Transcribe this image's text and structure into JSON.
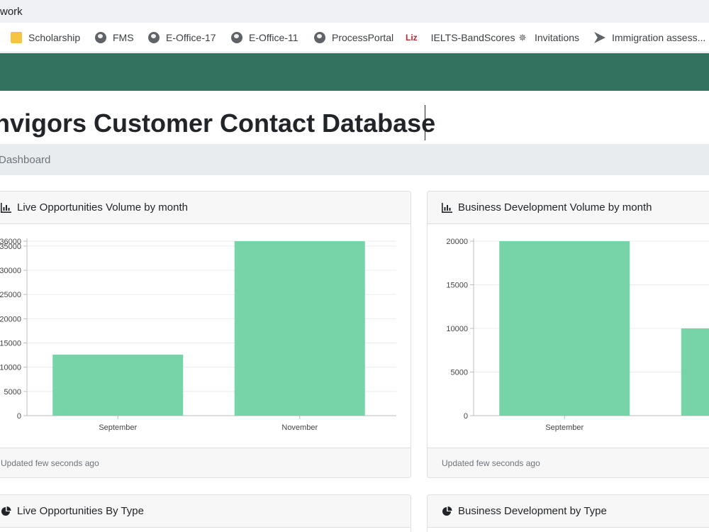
{
  "browser": {
    "tab_title": "work",
    "bookmarks": [
      {
        "label": "Scholarship",
        "icon": "folder-icon"
      },
      {
        "label": "FMS",
        "icon": "globe-icon"
      },
      {
        "label": "E-Office-17",
        "icon": "globe-icon"
      },
      {
        "label": "E-Office-11",
        "icon": "globe-icon"
      },
      {
        "label": "ProcessPortal",
        "icon": "globe-icon"
      },
      {
        "label": "IELTS-BandScores",
        "icon": "liz-logo-icon",
        "logo_text": "Liz"
      },
      {
        "label": "Invitations",
        "icon": "crest-icon"
      },
      {
        "label": "Immigration assess...",
        "icon": "flag-icon"
      }
    ]
  },
  "page": {
    "title": "nvigors Customer Contact Database",
    "breadcrumb": "Dashboard"
  },
  "colors": {
    "navbar": "#347260",
    "bar": "#77d4a8"
  },
  "cards": {
    "live_volume": {
      "title": "Live Opportunities Volume by month",
      "icon": "bar-chart-icon",
      "footer": "Updated few seconds ago"
    },
    "bd_volume": {
      "title": "Business Development Volume by month",
      "icon": "bar-chart-icon",
      "footer": "Updated few seconds ago"
    },
    "live_type": {
      "title": "Live Opportunities By Type",
      "icon": "pie-chart-icon"
    },
    "bd_type": {
      "title": "Business Development by Type",
      "icon": "pie-chart-icon"
    }
  },
  "chart_data": [
    {
      "type": "bar",
      "categories": [
        "September",
        "November"
      ],
      "values": [
        12600,
        36000
      ],
      "yticks": [
        0,
        5000,
        10000,
        15000,
        20000,
        25000,
        30000,
        35000,
        36000
      ],
      "ylim": [
        0,
        36000
      ],
      "grid": true,
      "legend": "none"
    },
    {
      "type": "bar",
      "categories": [
        "September",
        ""
      ],
      "values": [
        20000,
        10000
      ],
      "yticks": [
        0,
        5000,
        10000,
        15000,
        20000
      ],
      "ylim": [
        0,
        20000
      ],
      "grid": true,
      "legend": "none"
    }
  ]
}
